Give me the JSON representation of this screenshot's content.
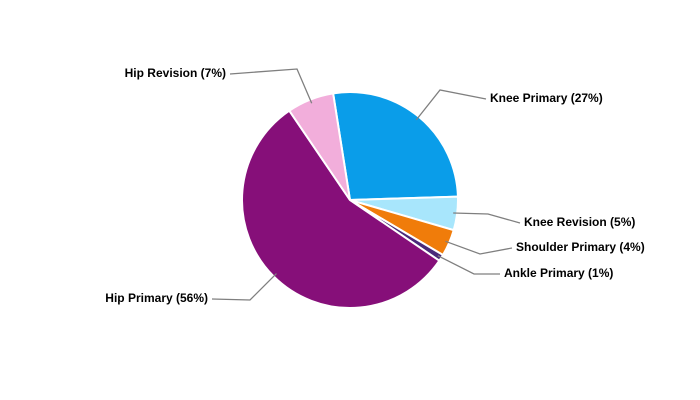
{
  "chart_data": {
    "type": "pie",
    "labels": [
      "Knee Primary (27%)",
      "Knee Revision (5%)",
      "Shoulder Primary (4%)",
      "Ankle Primary (1%)",
      "Hip Primary (56%)",
      "Hip Revision (7%)"
    ],
    "values": [
      27,
      5,
      4,
      1,
      56,
      7
    ],
    "colors": [
      "#0a9de9",
      "#a8e6fc",
      "#f07c0a",
      "#4a2a7a",
      "#860f79",
      "#f2aedb"
    ]
  }
}
